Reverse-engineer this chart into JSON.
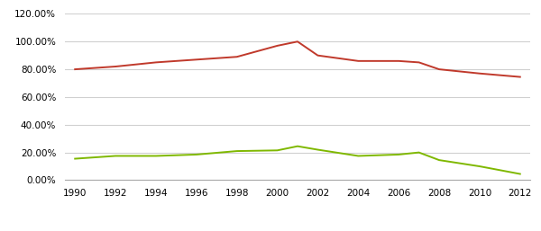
{
  "years": [
    1990,
    1992,
    1994,
    1996,
    1998,
    2000,
    2001,
    2002,
    2004,
    2006,
    2007,
    2008,
    2010,
    2012
  ],
  "us_values": [
    0.8,
    0.82,
    0.85,
    0.87,
    0.89,
    0.97,
    1.0,
    0.9,
    0.86,
    0.86,
    0.85,
    0.8,
    0.77,
    0.745
  ],
  "pr_values": [
    0.155,
    0.175,
    0.175,
    0.185,
    0.21,
    0.215,
    0.245,
    0.22,
    0.175,
    0.185,
    0.2,
    0.145,
    0.1,
    0.045
  ],
  "us_color": "#c0392b",
  "pr_color": "#7fb800",
  "ylim": [
    0.0,
    1.2
  ],
  "yticks": [
    0.0,
    0.2,
    0.4,
    0.6,
    0.8,
    1.0,
    1.2
  ],
  "xticks": [
    1990,
    1992,
    1994,
    1996,
    1998,
    2000,
    2002,
    2004,
    2006,
    2008,
    2010,
    2012
  ],
  "background_color": "#ffffff",
  "grid_color": "#d0d0d0"
}
